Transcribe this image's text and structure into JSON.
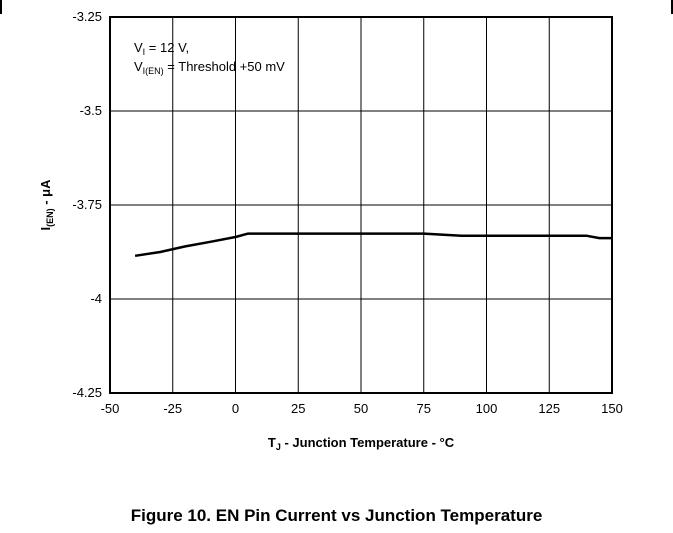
{
  "caption": "Figure 10. EN Pin Current vs Junction Temperature",
  "chart_data": {
    "type": "line",
    "xlabel": {
      "main": "T",
      "sub": "J",
      "rest": " - Junction Temperature - °C"
    },
    "ylabel": {
      "main": "I",
      "sub": "(EN)",
      "rest": " - μA"
    },
    "xlim": [
      -50,
      150
    ],
    "ylim": [
      -4.25,
      -3.25
    ],
    "x_ticks": [
      -50,
      -25,
      0,
      25,
      50,
      75,
      100,
      125,
      150
    ],
    "y_ticks": [
      -3.25,
      -3.5,
      -3.75,
      -4,
      -4.25
    ],
    "x_tick_labels": [
      "-50",
      "-25",
      "0",
      "25",
      "50",
      "75",
      "100",
      "125",
      "150"
    ],
    "y_tick_labels": [
      "-3.25",
      "-3.5",
      "-3.75",
      "-4",
      "-4.25"
    ],
    "grid": true,
    "annotation": {
      "line1": {
        "main": "V",
        "sub": "I",
        "rest": " = 12 V,"
      },
      "line2": {
        "main": "V",
        "sub": "I(EN)",
        "rest": " = Threshold +50 mV"
      }
    },
    "series": [
      {
        "x": [
          -40,
          -30,
          -20,
          -10,
          0,
          5,
          25,
          50,
          75,
          90,
          100,
          125,
          140,
          145,
          150
        ],
        "y": [
          -3.885,
          -3.875,
          -3.86,
          -3.848,
          -3.835,
          -3.826,
          -3.826,
          -3.826,
          -3.826,
          -3.832,
          -3.832,
          -3.832,
          -3.832,
          -3.838,
          -3.838
        ]
      }
    ]
  }
}
